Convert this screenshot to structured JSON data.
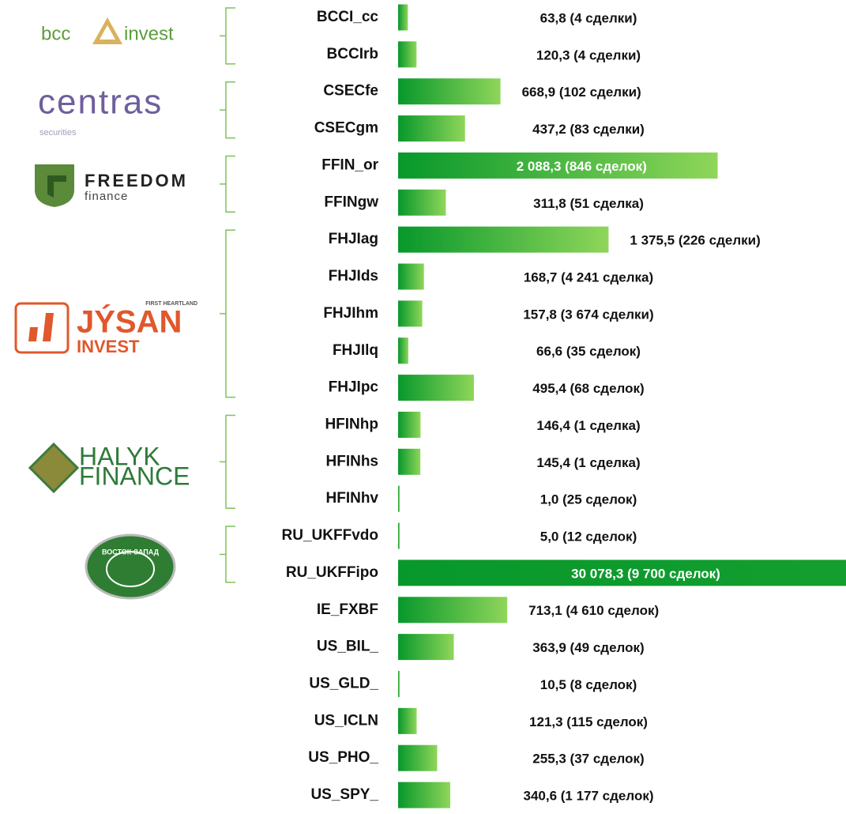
{
  "chart_data": {
    "type": "barh",
    "categories": [
      "BCCI_cc",
      "BCCIrb",
      "CSECfe",
      "CSECgm",
      "FFIN_or",
      "FFINgw",
      "FHJIag",
      "FHJIds",
      "FHJIhm",
      "FHJIlq",
      "FHJIpc",
      "HFINhp",
      "HFINhs",
      "HFINhv",
      "RU_UKFFvdo",
      "RU_UKFFipo",
      "IE_FXBF",
      "US_BIL_",
      "US_GLD_",
      "US_ICLN",
      "US_PHO_",
      "US_SPY_"
    ],
    "values": [
      63.8,
      120.3,
      668.9,
      437.2,
      2088.3,
      311.8,
      1375.5,
      168.7,
      157.8,
      66.6,
      495.4,
      146.4,
      145.4,
      1.0,
      5.0,
      30078.3,
      713.1,
      363.9,
      10.5,
      121.3,
      255.3,
      340.6
    ],
    "value_labels": [
      "63,8 (4 сделки)",
      "120,3 (4 сделки)",
      "668,9 (102 сделки)",
      "437,2 (83 сделки)",
      "2 088,3 (846 сделок)",
      "311,8 (51 сделка)",
      "1 375,5 (226 сделки)",
      "168,7 (4 241 сделка)",
      "157,8 (3 674 сделки)",
      "66,6 (35 сделок)",
      "495,4 (68 сделок)",
      "146,4 (1 сделка)",
      "145,4 (1 сделка)",
      "1,0 (25 сделок)",
      "5,0 (12 сделок)",
      "30 078,3 (9 700 сделок)",
      "713,1 (4 610 сделок)",
      "363,9 (49 сделок)",
      "10,5 (8 сделок)",
      "121,3 (115 сделок)",
      "255,3 (37 сделок)",
      "340,6 (1 177 сделок)"
    ],
    "color": [
      "#07982b",
      "#8fd65a"
    ],
    "logos": [
      [
        "bcc",
        "invest"
      ],
      [
        "centras",
        "securities"
      ],
      [
        "FREEDOM",
        "finance"
      ],
      [
        "FIRST HEARTLAND",
        "JÝSAN",
        "INVEST"
      ],
      [
        "HALYK",
        "FINANCE"
      ],
      [
        "ВОСТОК-ЗАПАД"
      ]
    ]
  }
}
